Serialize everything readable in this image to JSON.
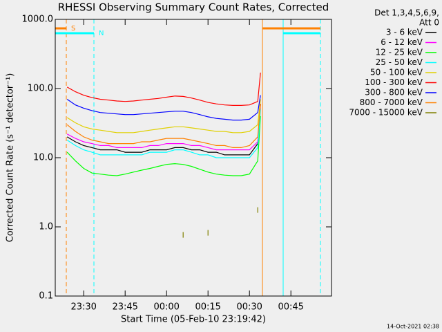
{
  "chart_data": {
    "type": "line",
    "title": "RHESSI Observing Summary Count Rates, Corrected",
    "xlabel": "Start Time (05-Feb-10 23:19:42)",
    "ylabel": "Corrected Count Rate (s⁻¹ detector⁻¹)",
    "legend_header": [
      "Det 1,3,4,5,6,9,",
      "Att 0"
    ],
    "footer": "14-Oct-2021 02:38",
    "log_y": true,
    "ylim": [
      0.1,
      1000
    ],
    "yticks": [
      {
        "value": 0.1,
        "label": "0.1"
      },
      {
        "value": 1,
        "label": "1.0"
      },
      {
        "value": 10,
        "label": "10.0"
      },
      {
        "value": 100,
        "label": "100.0"
      },
      {
        "value": 1000,
        "label": "1000.0"
      }
    ],
    "xlim": [
      "23:19:42",
      "00:59:42"
    ],
    "xticks": [
      "23:30",
      "23:45",
      "00:00",
      "00:15",
      "00:30",
      "00:45"
    ],
    "x": [
      "23:24",
      "23:27",
      "23:30",
      "23:33",
      "23:36",
      "23:39",
      "23:42",
      "23:45",
      "23:48",
      "23:51",
      "23:54",
      "23:57",
      "00:00",
      "00:03",
      "00:06",
      "00:09",
      "00:12",
      "00:15",
      "00:18",
      "00:21",
      "00:24",
      "00:27",
      "00:30",
      "00:33",
      "00:34"
    ],
    "series": [
      {
        "name": "3 - 6 keV",
        "color": "#000000",
        "values": [
          20,
          17,
          15,
          14,
          13,
          13,
          13,
          12,
          12,
          12,
          13,
          13,
          13,
          14,
          14,
          13,
          13,
          12,
          12,
          11,
          11,
          11,
          11,
          16,
          60
        ]
      },
      {
        "name": "6 - 12 keV",
        "color": "#ff00ff",
        "values": [
          22,
          19,
          17,
          16,
          15,
          15,
          14,
          14,
          14,
          14,
          15,
          15,
          16,
          16,
          16,
          15,
          15,
          14,
          13,
          13,
          13,
          13,
          13,
          17,
          60
        ]
      },
      {
        "name": "12 - 25 keV",
        "color": "#00ff00",
        "values": [
          12,
          9,
          7,
          6,
          5.8,
          5.6,
          5.5,
          5.8,
          6.2,
          6.6,
          7,
          7.5,
          8,
          8.2,
          8,
          7.5,
          6.8,
          6.2,
          5.8,
          5.6,
          5.5,
          5.5,
          5.8,
          9,
          40
        ]
      },
      {
        "name": "25 - 50 keV",
        "color": "#00ffff",
        "values": [
          18,
          15,
          13,
          12,
          11,
          11,
          11,
          11,
          11,
          11,
          12,
          12,
          12,
          13,
          13,
          12,
          11,
          11,
          10,
          10,
          10,
          10,
          10,
          14,
          50
        ]
      },
      {
        "name": "50 - 100 keV",
        "color": "#e0d000",
        "values": [
          38,
          32,
          28,
          26,
          25,
          24,
          23,
          23,
          23,
          24,
          25,
          26,
          27,
          28,
          28,
          27,
          26,
          25,
          24,
          24,
          23,
          23,
          24,
          30,
          70
        ]
      },
      {
        "name": "100 - 300 keV",
        "color": "#ff0000",
        "values": [
          105,
          90,
          80,
          74,
          70,
          68,
          66,
          65,
          66,
          68,
          70,
          72,
          75,
          78,
          77,
          73,
          68,
          63,
          60,
          58,
          57,
          57,
          58,
          65,
          170
        ]
      },
      {
        "name": "300 - 800 keV",
        "color": "#0000ff",
        "values": [
          70,
          58,
          52,
          48,
          45,
          44,
          43,
          42,
          42,
          43,
          44,
          45,
          46,
          47,
          47,
          45,
          42,
          39,
          37,
          36,
          35,
          35,
          36,
          45,
          80
        ]
      },
      {
        "name": "800 - 7000 keV",
        "color": "#ff8000",
        "values": [
          30,
          24,
          20,
          18,
          17,
          16,
          16,
          16,
          16,
          17,
          17,
          18,
          19,
          19,
          19,
          18,
          17,
          16,
          15,
          15,
          14,
          14,
          15,
          20,
          60
        ]
      },
      {
        "name": "7000 - 15000 keV",
        "color": "#808000",
        "values": [
          null,
          null,
          null,
          null,
          null,
          null,
          null,
          null,
          null,
          null,
          null,
          null,
          null,
          null,
          0.7,
          null,
          null,
          0.75,
          null,
          null,
          null,
          null,
          null,
          1.6,
          null
        ]
      }
    ],
    "markers": [
      {
        "x": "23:19:42",
        "color": "#00ffff",
        "dashed": false
      },
      {
        "x": "23:23:42",
        "color": "#ff8000",
        "dashed": true
      },
      {
        "x": "23:33:42",
        "color": "#00ffff",
        "dashed": true
      },
      {
        "x": "00:34:42",
        "color": "#ff8000",
        "dashed": false
      },
      {
        "x": "00:42:12",
        "color": "#00ffff",
        "dashed": false
      },
      {
        "x": "00:55:42",
        "color": "#00ffff",
        "dashed": true
      }
    ],
    "flags": [
      {
        "label": "S",
        "color": "#ff8000",
        "spans": [
          [
            "23:19:42",
            "23:23:42"
          ],
          [
            "00:34:42",
            "00:55:42"
          ]
        ]
      },
      {
        "label": "N",
        "color": "#00ffff",
        "spans": [
          [
            "23:19:42",
            "23:33:42"
          ],
          [
            "00:42:12",
            "00:55:42"
          ]
        ]
      }
    ]
  }
}
